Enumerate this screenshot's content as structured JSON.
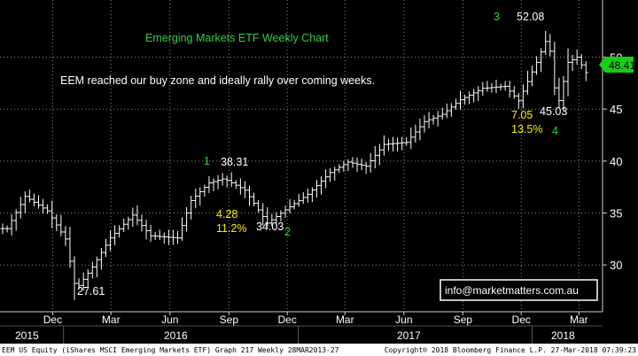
{
  "colors": {
    "background": "#000000",
    "bars": "#ffffff",
    "grid": "#8a8a8a",
    "title": "#33cc44",
    "label_yellow": "#ffee00",
    "label_green": "#22dd22",
    "price_badge_bg": "#16d016",
    "footer_bg": "#ffffff"
  },
  "chart_data": {
    "type": "ohlc",
    "title": "Emerging Markets ETF Weekly Chart",
    "subtitle": "EEM reached our buy zone and ideally rally over coming weeks.",
    "ylim": [
      25.5,
      55.5
    ],
    "yticks": [
      "30",
      "35",
      "40",
      "45",
      "50"
    ],
    "grid": true,
    "last_price": "48.41",
    "months": [
      "Dec",
      "Mar",
      "Jun",
      "Sep",
      "Dec",
      "Mar",
      "Jun",
      "Sep",
      "Dec",
      "Mar"
    ],
    "years": [
      "2015",
      "2016",
      "2017",
      "2018"
    ],
    "points": [
      {
        "d": "2015-10-05",
        "v": 33.5
      },
      {
        "d": "2015-11-02",
        "v": 36.6
      },
      {
        "d": "2015-12-07",
        "v": 35.2
      },
      {
        "d": "2016-01-04",
        "v": 32.5
      },
      {
        "d": "2016-01-20",
        "v": 27.61
      },
      {
        "d": "2016-02-15",
        "v": 29.8
      },
      {
        "d": "2016-03-14",
        "v": 32.6
      },
      {
        "d": "2016-04-18",
        "v": 34.8
      },
      {
        "d": "2016-05-16",
        "v": 32.8
      },
      {
        "d": "2016-06-27",
        "v": 32.6
      },
      {
        "d": "2016-07-18",
        "v": 36.2
      },
      {
        "d": "2016-08-15",
        "v": 37.9
      },
      {
        "d": "2016-09-07",
        "v": 38.31
      },
      {
        "d": "2016-10-10",
        "v": 37.2
      },
      {
        "d": "2016-11-14",
        "v": 34.03
      },
      {
        "d": "2016-12-12",
        "v": 35.3
      },
      {
        "d": "2017-01-16",
        "v": 36.8
      },
      {
        "d": "2017-02-20",
        "v": 38.9
      },
      {
        "d": "2017-03-20",
        "v": 39.9
      },
      {
        "d": "2017-04-17",
        "v": 39.5
      },
      {
        "d": "2017-05-15",
        "v": 41.6
      },
      {
        "d": "2017-06-19",
        "v": 41.8
      },
      {
        "d": "2017-07-17",
        "v": 43.8
      },
      {
        "d": "2017-08-14",
        "v": 44.5
      },
      {
        "d": "2017-09-11",
        "v": 45.9
      },
      {
        "d": "2017-10-16",
        "v": 47.0
      },
      {
        "d": "2017-11-20",
        "v": 47.2
      },
      {
        "d": "2017-12-11",
        "v": 45.8
      },
      {
        "d": "2018-01-08",
        "v": 49.5
      },
      {
        "d": "2018-01-26",
        "v": 52.08
      },
      {
        "d": "2018-02-09",
        "v": 45.03
      },
      {
        "d": "2018-02-26",
        "v": 49.5
      },
      {
        "d": "2018-03-12",
        "v": 50.0
      },
      {
        "d": "2018-03-27",
        "v": 48.41
      }
    ],
    "annotations": {
      "low_2016": "27.61",
      "high_sep": "38.31",
      "low_nov": "34.03",
      "gain_points": "4.28",
      "gain_pct": "11.2%",
      "high_jan": "52.08",
      "low_feb": "45.03",
      "drop_points": "7.05",
      "drop_pct": "13.5%",
      "wave_1": "1",
      "wave_2": "2",
      "wave_3": "3",
      "wave_4": "4"
    },
    "email": "info@marketmatters.com.au"
  },
  "footer": {
    "left": "EEM US Equity (iShares MSCI Emerging Markets ETF) Graph 217  Weekly 28MAR2013-27",
    "right": "Copyright® 2018 Bloomberg Finance L.P.     27-Mar-2018 07:39:23"
  }
}
